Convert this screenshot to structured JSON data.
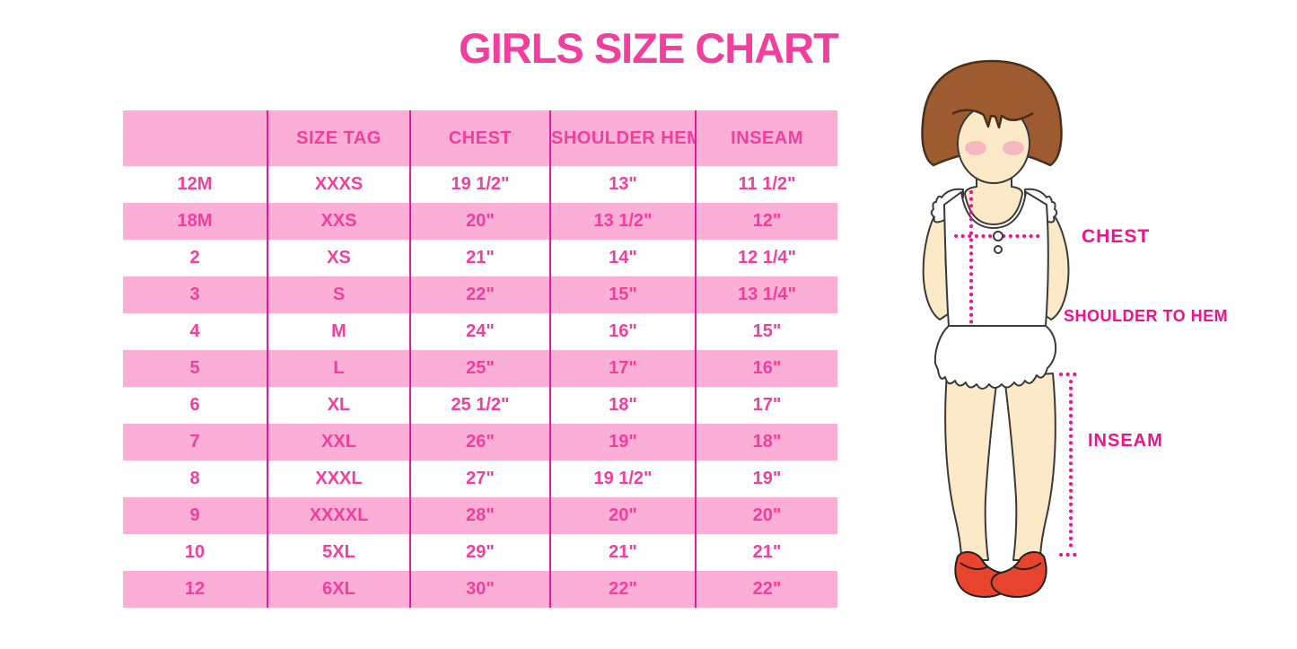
{
  "title": "GIRLS SIZE CHART",
  "chart_data": {
    "type": "table",
    "title": "GIRLS SIZE CHART",
    "columns": [
      "",
      "SIZE TAG",
      "CHEST",
      "SHOULDER HEM",
      "INSEAM"
    ],
    "rows": [
      [
        "12M",
        "XXXS",
        "19 1/2\"",
        "13\"",
        "11 1/2\""
      ],
      [
        "18M",
        "XXS",
        "20\"",
        "13 1/2\"",
        "12\""
      ],
      [
        "2",
        "XS",
        "21\"",
        "14\"",
        "12 1/4\""
      ],
      [
        "3",
        "S",
        "22\"",
        "15\"",
        "13 1/4\""
      ],
      [
        "4",
        "M",
        "24\"",
        "16\"",
        "15\""
      ],
      [
        "5",
        "L",
        "25\"",
        "17\"",
        "16\""
      ],
      [
        "6",
        "XL",
        "25 1/2\"",
        "18\"",
        "17\""
      ],
      [
        "7",
        "XXL",
        "26\"",
        "19\"",
        "18\""
      ],
      [
        "8",
        "XXXL",
        "27\"",
        "19 1/2\"",
        "19\""
      ],
      [
        "9",
        "XXXXL",
        "28\"",
        "20\"",
        "20\""
      ],
      [
        "10",
        "5XL",
        "29\"",
        "21\"",
        "21\""
      ],
      [
        "12",
        "6XL",
        "30\"",
        "22\"",
        "22\""
      ]
    ]
  },
  "figure": {
    "labels": {
      "chest": "CHEST",
      "shoulder_to_hem": "SHOULDER TO HEM",
      "inseam": "INSEAM"
    }
  },
  "colors": {
    "title_text": "#F23E9D",
    "table_row_pink": "#FBAFD7",
    "table_divider": "#E8189B",
    "table_cell_text": "#F23E9D",
    "measure_label": "#F2118D",
    "hair_brown": "#9E5B30",
    "skin": "#FCE9C8",
    "blush": "#F4A7BD",
    "shoe_red": "#E8432C"
  }
}
